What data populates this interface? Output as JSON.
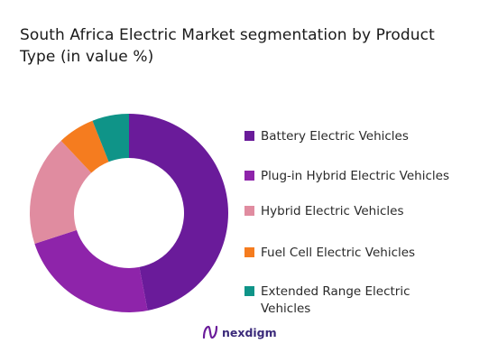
{
  "chart_data": {
    "type": "pie",
    "title": "South Africa Electric Market segmentation by Product Type (in value %)",
    "categories": [
      "Battery Electric Vehicles",
      "Plug-in Hybrid Electric Vehicles",
      "Hybrid Electric Vehicles",
      "Fuel Cell Electric Vehicles",
      "Extended Range Electric Vehicles"
    ],
    "values": [
      47,
      23,
      18,
      6,
      6
    ],
    "colors": [
      "#6a1b9a",
      "#8e24aa",
      "#e08ca0",
      "#f57c1f",
      "#0f9488"
    ],
    "donut": true,
    "legend_position": "right"
  },
  "brand": {
    "name": "nexdigm",
    "icon": "nexdigm-logo-icon"
  }
}
